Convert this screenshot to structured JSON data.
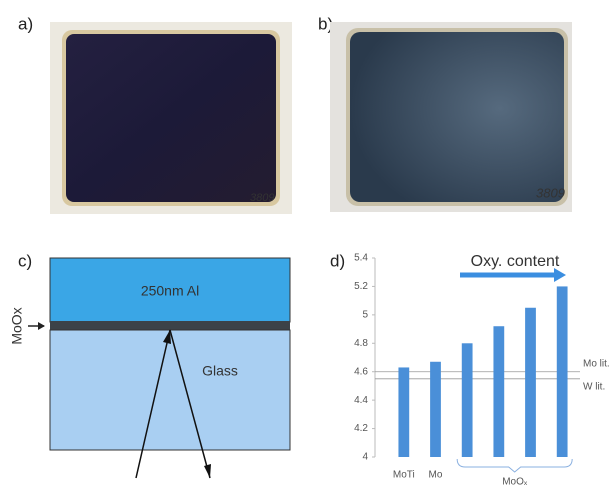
{
  "panels": {
    "a": "a)",
    "b": "b)",
    "c": "c)",
    "d": "d)"
  },
  "photos": {
    "a": {
      "mark": "3809"
    },
    "b": {
      "mark": "3809"
    }
  },
  "diagram": {
    "top_layer": "250nm Al",
    "bottom_layer": "Glass",
    "interlayer": "MoOx"
  },
  "chart_data": {
    "type": "bar",
    "categories": [
      "MoTi",
      "Mo",
      null,
      null,
      null,
      null
    ],
    "values": [
      4.63,
      4.67,
      4.8,
      4.92,
      5.05,
      5.2
    ],
    "color": "#4a8fd8",
    "ylim": [
      4,
      5.4
    ],
    "yticks": [
      4,
      4.2,
      4.4,
      4.6,
      4.8,
      5,
      5.2,
      5.4
    ],
    "group_label": "MoOₓ",
    "annotation": "Oxy. content",
    "reference_lines": [
      {
        "label": "Mo lit.",
        "value": 4.6
      },
      {
        "label": "W lit.",
        "value": 4.55
      }
    ]
  }
}
